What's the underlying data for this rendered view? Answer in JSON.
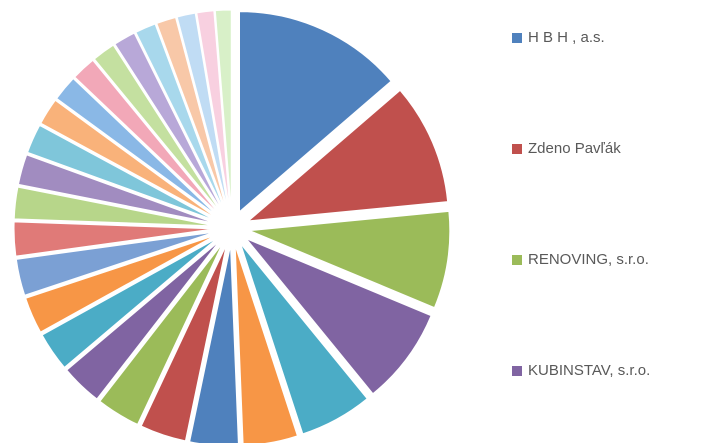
{
  "chart_data": {
    "type": "pie",
    "categories": [
      "H B H , a.s.",
      "Zdeno Pavľák",
      "RENOVING, s.r.o.",
      "KUBINSTAV, s.r.o.",
      null,
      null,
      null,
      null,
      null,
      null,
      null,
      null,
      null,
      null,
      null,
      null,
      null,
      null,
      null,
      null,
      null,
      null,
      null,
      null,
      null,
      null,
      null
    ],
    "values": [
      14,
      10,
      8,
      8,
      6,
      4.5,
      4,
      3.8,
      3.6,
      3.4,
      3.2,
      3,
      3,
      2.8,
      2.6,
      2.5,
      2.4,
      2.2,
      2.1,
      2,
      1.9,
      1.8,
      1.7,
      1.6,
      1.5,
      1.4,
      1.3
    ],
    "colors": [
      "#4f81bd",
      "#c0504d",
      "#9bbb59",
      "#8064a2",
      "#4bacc6",
      "#f79646",
      "#4f81bd",
      "#c0504d",
      "#9bbb59",
      "#8064a2",
      "#4bacc6",
      "#f79646",
      "#7ba0d4",
      "#e07a78",
      "#b7d68a",
      "#a18cc0",
      "#7fc6da",
      "#f9b27a",
      "#8ab8e6",
      "#f2a8b8",
      "#c4e0a0",
      "#b8a8d8",
      "#a8d8ec",
      "#f8c8a8",
      "#c0dcf4",
      "#f8d0e0",
      "#d8f0c8"
    ],
    "legend": "right"
  }
}
